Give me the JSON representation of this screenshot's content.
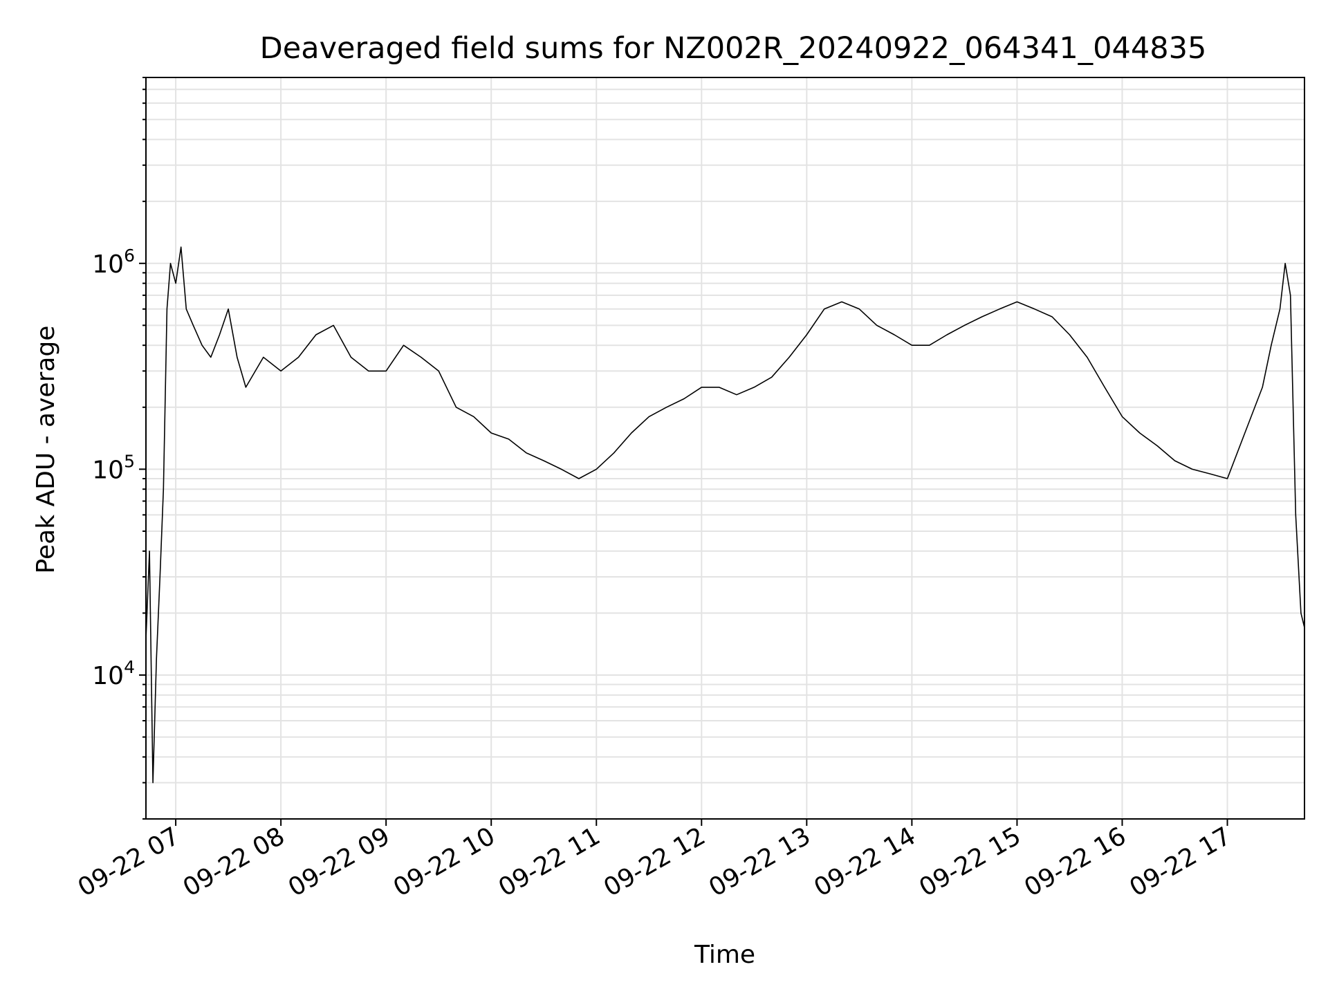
{
  "chart_data": {
    "type": "line",
    "title": "Deaveraged field sums for NZ002R_20240922_064341_044835",
    "xlabel": "Time",
    "ylabel": "Peak ADU - average",
    "xlim": [
      "2024-09-22 06:43",
      "2024-09-22 17:44"
    ],
    "ylim": [
      2000,
      8000000
    ],
    "yscale": "log",
    "grid": true,
    "grid_minor": true,
    "legend": "none",
    "line_color": "#000000",
    "x_ticks": [
      "2024-09-22 07:00",
      "2024-09-22 08:00",
      "2024-09-22 09:00",
      "2024-09-22 10:00",
      "2024-09-22 11:00",
      "2024-09-22 12:00",
      "2024-09-22 13:00",
      "2024-09-22 14:00",
      "2024-09-22 15:00",
      "2024-09-22 16:00",
      "2024-09-22 17:00"
    ],
    "x_tick_labels": [
      "09-22 07",
      "09-22 08",
      "09-22 09",
      "09-22 10",
      "09-22 11",
      "09-22 12",
      "09-22 13",
      "09-22 14",
      "09-22 15",
      "09-22 16",
      "09-22 17"
    ],
    "y_ticks": [
      10000,
      100000,
      1000000
    ],
    "y_tick_labels": [
      {
        "base": "10",
        "exp": "4"
      },
      {
        "base": "10",
        "exp": "5"
      },
      {
        "base": "10",
        "exp": "6"
      }
    ],
    "series": [
      {
        "x": [
          "2024-09-22 06:43",
          "2024-09-22 06:45",
          "2024-09-22 06:47",
          "2024-09-22 06:49",
          "2024-09-22 06:51",
          "2024-09-22 06:53",
          "2024-09-22 06:55",
          "2024-09-22 06:57",
          "2024-09-22 07:00",
          "2024-09-22 07:03",
          "2024-09-22 07:06",
          "2024-09-22 07:10",
          "2024-09-22 07:15",
          "2024-09-22 07:20",
          "2024-09-22 07:25",
          "2024-09-22 07:30",
          "2024-09-22 07:35",
          "2024-09-22 07:40",
          "2024-09-22 07:50",
          "2024-09-22 08:00",
          "2024-09-22 08:10",
          "2024-09-22 08:20",
          "2024-09-22 08:30",
          "2024-09-22 08:40",
          "2024-09-22 08:50",
          "2024-09-22 09:00",
          "2024-09-22 09:10",
          "2024-09-22 09:20",
          "2024-09-22 09:30",
          "2024-09-22 09:40",
          "2024-09-22 09:50",
          "2024-09-22 10:00",
          "2024-09-22 10:10",
          "2024-09-22 10:20",
          "2024-09-22 10:30",
          "2024-09-22 10:40",
          "2024-09-22 10:50",
          "2024-09-22 11:00",
          "2024-09-22 11:10",
          "2024-09-22 11:20",
          "2024-09-22 11:30",
          "2024-09-22 11:40",
          "2024-09-22 11:50",
          "2024-09-22 12:00",
          "2024-09-22 12:10",
          "2024-09-22 12:20",
          "2024-09-22 12:30",
          "2024-09-22 12:40",
          "2024-09-22 12:50",
          "2024-09-22 13:00",
          "2024-09-22 13:10",
          "2024-09-22 13:20",
          "2024-09-22 13:30",
          "2024-09-22 13:40",
          "2024-09-22 13:50",
          "2024-09-22 14:00",
          "2024-09-22 14:10",
          "2024-09-22 14:20",
          "2024-09-22 14:30",
          "2024-09-22 14:40",
          "2024-09-22 14:50",
          "2024-09-22 15:00",
          "2024-09-22 15:10",
          "2024-09-22 15:20",
          "2024-09-22 15:30",
          "2024-09-22 15:40",
          "2024-09-22 15:50",
          "2024-09-22 16:00",
          "2024-09-22 16:10",
          "2024-09-22 16:20",
          "2024-09-22 16:30",
          "2024-09-22 16:40",
          "2024-09-22 16:50",
          "2024-09-22 17:00",
          "2024-09-22 17:10",
          "2024-09-22 17:20",
          "2024-09-22 17:25",
          "2024-09-22 17:30",
          "2024-09-22 17:33",
          "2024-09-22 17:36",
          "2024-09-22 17:39",
          "2024-09-22 17:42",
          "2024-09-22 17:44"
        ],
        "y": [
          15000,
          40000,
          3000,
          12000,
          30000,
          80000,
          600000,
          1000000,
          800000,
          1200000,
          600000,
          500000,
          400000,
          350000,
          450000,
          600000,
          350000,
          250000,
          350000,
          300000,
          350000,
          450000,
          500000,
          350000,
          300000,
          300000,
          400000,
          350000,
          300000,
          200000,
          180000,
          150000,
          140000,
          120000,
          110000,
          100000,
          90000,
          100000,
          120000,
          150000,
          180000,
          200000,
          220000,
          250000,
          250000,
          230000,
          250000,
          280000,
          350000,
          450000,
          600000,
          650000,
          600000,
          500000,
          450000,
          400000,
          400000,
          450000,
          500000,
          550000,
          600000,
          650000,
          600000,
          550000,
          450000,
          350000,
          250000,
          180000,
          150000,
          130000,
          110000,
          100000,
          95000,
          90000,
          150000,
          250000,
          400000,
          600000,
          1000000,
          700000,
          60000,
          20000,
          17000
        ]
      }
    ]
  }
}
